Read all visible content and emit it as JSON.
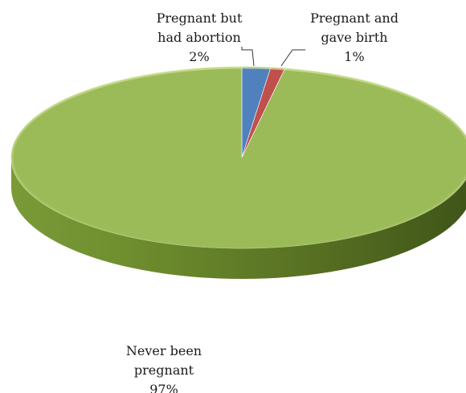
{
  "chart_data": {
    "type": "pie",
    "three_d": true,
    "title": "",
    "slices": [
      {
        "label_lines": [
          "Pregnant but",
          "had abortion"
        ],
        "percent_label": "2%",
        "value": 2,
        "color": "#4f81bd"
      },
      {
        "label_lines": [
          "Pregnant and",
          "gave birth"
        ],
        "percent_label": "1%",
        "value": 1,
        "color": "#c0504d"
      },
      {
        "label_lines": [
          "Never been",
          "pregnant"
        ],
        "percent_label": "97%",
        "value": 97,
        "color": "#9bbb59"
      }
    ],
    "legend": "none"
  }
}
